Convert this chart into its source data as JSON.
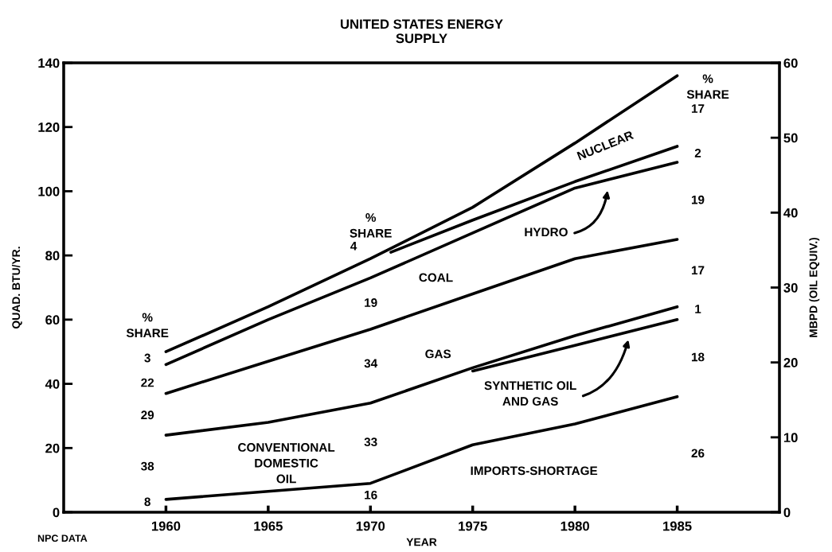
{
  "chart_data": {
    "type": "line",
    "title": "UNITED STATES ENERGY\nSUPPLY",
    "xlabel": "YEAR",
    "ylabel": "QUAD. BTU/YR.",
    "y2label": "MBPD (OIL EQUIV.)",
    "xlim": [
      1955,
      1990
    ],
    "xticks": [
      1960,
      1965,
      1970,
      1975,
      1980,
      1985
    ],
    "ylim": [
      0,
      140
    ],
    "yticks": [
      0,
      20,
      40,
      60,
      80,
      100,
      120,
      140
    ],
    "y2lim": [
      0,
      60
    ],
    "y2ticks": [
      0,
      10,
      20,
      30,
      40,
      50,
      60
    ],
    "grid": false,
    "marker": "none",
    "line_style": "solid",
    "series": [
      {
        "color": "#000000",
        "x": [
          1960,
          1965,
          1970,
          1975,
          1980,
          1985
        ],
        "values": [
          50,
          64,
          79,
          95,
          115,
          136
        ]
      },
      {
        "color": "#000000",
        "x": [
          1971,
          1975,
          1980,
          1985
        ],
        "values": [
          81,
          91,
          103,
          114
        ]
      },
      {
        "color": "#000000",
        "x": [
          1960,
          1965,
          1970,
          1975,
          1980,
          1985
        ],
        "values": [
          46,
          60,
          73,
          87,
          101,
          109
        ]
      },
      {
        "color": "#000000",
        "x": [
          1960,
          1965,
          1970,
          1975,
          1980,
          1985
        ],
        "values": [
          37,
          47,
          57,
          68,
          79,
          85
        ]
      },
      {
        "color": "#000000",
        "x": [
          1960,
          1965,
          1970,
          1975,
          1980,
          1985
        ],
        "values": [
          24,
          28,
          34,
          45,
          55,
          64
        ]
      },
      {
        "color": "#000000",
        "x": [
          1975,
          1980,
          1985
        ],
        "values": [
          44,
          52,
          60
        ]
      },
      {
        "color": "#000000",
        "x": [
          1960,
          1965,
          1970,
          1975,
          1980,
          1985
        ],
        "values": [
          4,
          6.5,
          9,
          21,
          27.5,
          36
        ]
      }
    ],
    "annotations": [
      "NUCLEAR",
      "HYDRO",
      "COAL",
      "GAS",
      "SYNTHETIC OIL\nAND GAS",
      "CONVENTIONAL\nDOMESTIC\nOIL",
      "IMPORTS-SHORTAGE",
      "NPC DATA",
      "%\nSHARE",
      "3",
      "22",
      "29",
      "38",
      "8",
      "%\nSHARE",
      "4",
      "19",
      "34",
      "33",
      "16",
      "%\nSHARE",
      "17",
      "2",
      "19",
      "17",
      "1",
      "18",
      "26"
    ]
  }
}
